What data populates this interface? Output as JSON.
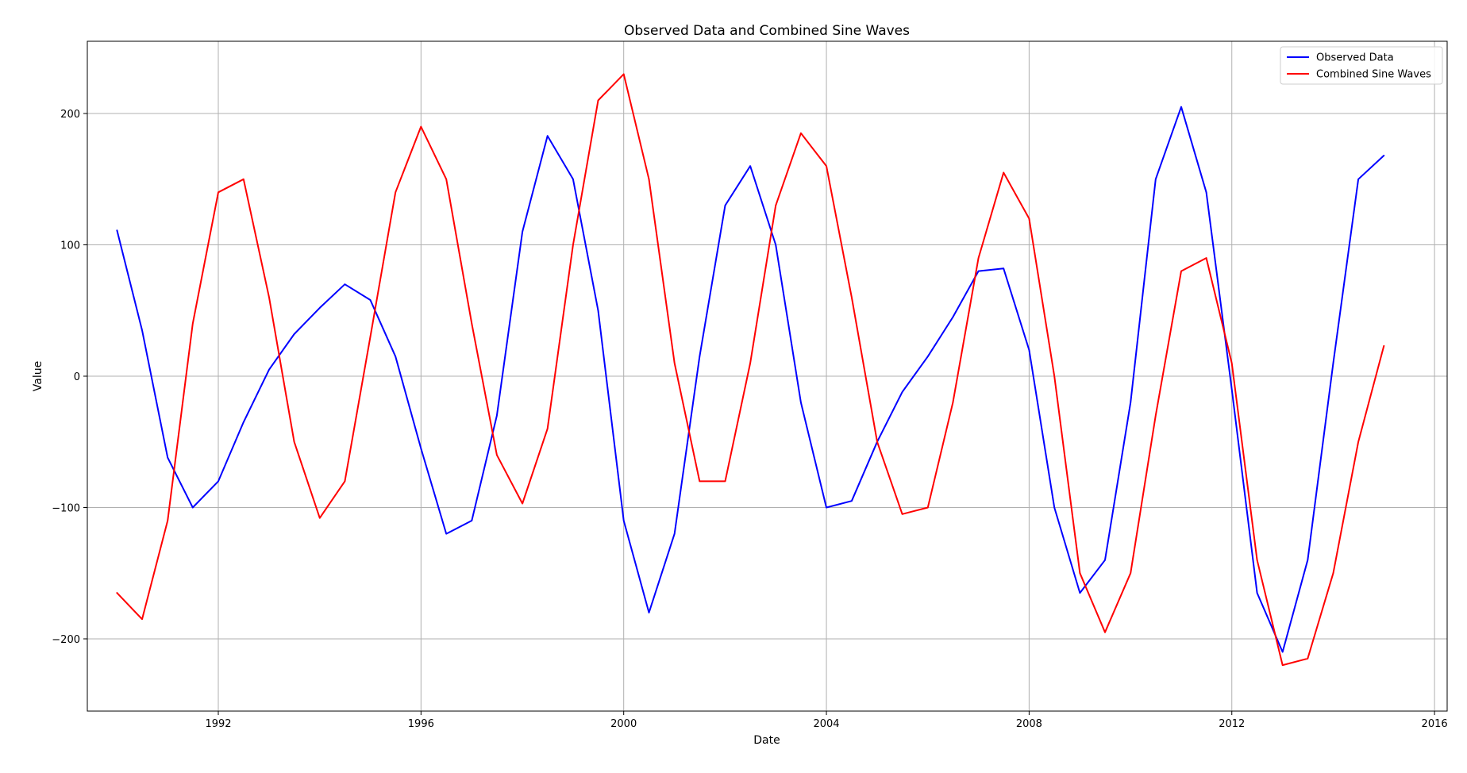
{
  "chart_data": {
    "type": "line",
    "title": "Observed Data and Combined Sine Waves",
    "xlabel": "Date",
    "ylabel": "Value",
    "xlim": [
      "1989-06-01",
      "2016-04-01"
    ],
    "ylim": [
      -255,
      255
    ],
    "x_ticks": [
      {
        "value": "1992-01-01",
        "label": "1992"
      },
      {
        "value": "1996-01-01",
        "label": "1996"
      },
      {
        "value": "2000-01-01",
        "label": "2000"
      },
      {
        "value": "2004-01-01",
        "label": "2004"
      },
      {
        "value": "2008-01-01",
        "label": "2008"
      },
      {
        "value": "2012-01-01",
        "label": "2012"
      },
      {
        "value": "2016-01-01",
        "label": "2016"
      }
    ],
    "y_ticks": [
      {
        "value": -200,
        "label": "−200"
      },
      {
        "value": -100,
        "label": "−100"
      },
      {
        "value": 0,
        "label": "0"
      },
      {
        "value": 100,
        "label": "100"
      },
      {
        "value": 200,
        "label": "200"
      }
    ],
    "grid": true,
    "legend_position": "top-right",
    "series": [
      {
        "name": "Observed Data",
        "color": "#0000ff",
        "points": [
          [
            "1990-01-01",
            111
          ],
          [
            "1990-07-01",
            35
          ],
          [
            "1991-01-01",
            -62
          ],
          [
            "1991-07-01",
            -100
          ],
          [
            "1992-01-01",
            -80
          ],
          [
            "1992-07-01",
            -35
          ],
          [
            "1993-01-01",
            5
          ],
          [
            "1993-07-01",
            32
          ],
          [
            "1994-01-01",
            52
          ],
          [
            "1994-07-01",
            70
          ],
          [
            "1995-01-01",
            58
          ],
          [
            "1995-07-01",
            15
          ],
          [
            "1996-01-01",
            -55
          ],
          [
            "1996-07-01",
            -120
          ],
          [
            "1997-01-01",
            -110
          ],
          [
            "1997-07-01",
            -30
          ],
          [
            "1998-01-01",
            110
          ],
          [
            "1998-07-01",
            183
          ],
          [
            "1999-01-01",
            150
          ],
          [
            "1999-07-01",
            50
          ],
          [
            "2000-01-01",
            -110
          ],
          [
            "2000-07-01",
            -180
          ],
          [
            "2001-01-01",
            -120
          ],
          [
            "2001-07-01",
            15
          ],
          [
            "2002-01-01",
            130
          ],
          [
            "2002-07-01",
            160
          ],
          [
            "2003-01-01",
            100
          ],
          [
            "2003-07-01",
            -20
          ],
          [
            "2004-01-01",
            -100
          ],
          [
            "2004-07-01",
            -95
          ],
          [
            "2005-01-01",
            -50
          ],
          [
            "2005-07-01",
            -12
          ],
          [
            "2006-01-01",
            15
          ],
          [
            "2006-07-01",
            45
          ],
          [
            "2007-01-01",
            80
          ],
          [
            "2007-07-01",
            82
          ],
          [
            "2008-01-01",
            20
          ],
          [
            "2008-07-01",
            -100
          ],
          [
            "2009-01-01",
            -165
          ],
          [
            "2009-07-01",
            -140
          ],
          [
            "2010-01-01",
            -20
          ],
          [
            "2010-07-01",
            150
          ],
          [
            "2011-01-01",
            205
          ],
          [
            "2011-07-01",
            140
          ],
          [
            "2012-01-01",
            -10
          ],
          [
            "2012-07-01",
            -165
          ],
          [
            "2013-01-01",
            -210
          ],
          [
            "2013-07-01",
            -140
          ],
          [
            "2014-01-01",
            10
          ],
          [
            "2014-07-01",
            150
          ],
          [
            "2015-01-01",
            168
          ]
        ]
      },
      {
        "name": "Combined Sine Waves",
        "color": "#ff0000",
        "points": [
          [
            "1990-01-01",
            -165
          ],
          [
            "1990-07-01",
            -185
          ],
          [
            "1991-01-01",
            -110
          ],
          [
            "1991-07-01",
            40
          ],
          [
            "1992-01-01",
            140
          ],
          [
            "1992-07-01",
            150
          ],
          [
            "1993-01-01",
            60
          ],
          [
            "1993-07-01",
            -50
          ],
          [
            "1994-01-01",
            -108
          ],
          [
            "1994-07-01",
            -80
          ],
          [
            "1995-01-01",
            30
          ],
          [
            "1995-07-01",
            140
          ],
          [
            "1996-01-01",
            190
          ],
          [
            "1996-07-01",
            150
          ],
          [
            "1997-01-01",
            40
          ],
          [
            "1997-07-01",
            -60
          ],
          [
            "1998-01-01",
            -97
          ],
          [
            "1998-07-01",
            -40
          ],
          [
            "1999-01-01",
            100
          ],
          [
            "1999-07-01",
            210
          ],
          [
            "2000-01-01",
            230
          ],
          [
            "2000-07-01",
            150
          ],
          [
            "2001-01-01",
            10
          ],
          [
            "2001-07-01",
            -80
          ],
          [
            "2002-01-01",
            -80
          ],
          [
            "2002-07-01",
            10
          ],
          [
            "2003-01-01",
            130
          ],
          [
            "2003-07-01",
            185
          ],
          [
            "2004-01-01",
            160
          ],
          [
            "2004-07-01",
            60
          ],
          [
            "2005-01-01",
            -50
          ],
          [
            "2005-07-01",
            -105
          ],
          [
            "2006-01-01",
            -100
          ],
          [
            "2006-07-01",
            -20
          ],
          [
            "2007-01-01",
            90
          ],
          [
            "2007-07-01",
            155
          ],
          [
            "2008-01-01",
            120
          ],
          [
            "2008-07-01",
            0
          ],
          [
            "2009-01-01",
            -150
          ],
          [
            "2009-07-01",
            -195
          ],
          [
            "2010-01-01",
            -150
          ],
          [
            "2010-07-01",
            -30
          ],
          [
            "2011-01-01",
            80
          ],
          [
            "2011-07-01",
            90
          ],
          [
            "2012-01-01",
            10
          ],
          [
            "2012-07-01",
            -140
          ],
          [
            "2013-01-01",
            -220
          ],
          [
            "2013-07-01",
            -215
          ],
          [
            "2014-01-01",
            -150
          ],
          [
            "2014-07-01",
            -50
          ],
          [
            "2015-01-01",
            23
          ]
        ]
      }
    ]
  }
}
